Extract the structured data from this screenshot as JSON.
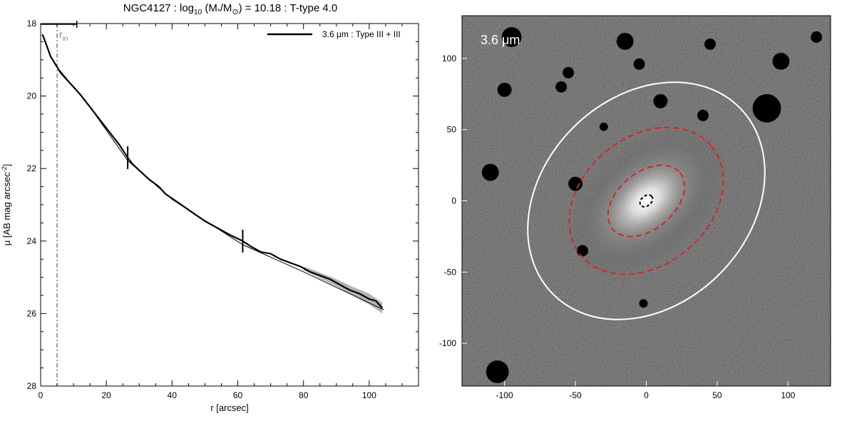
{
  "figure_title": "NGC4127 : log",
  "title_sub": "10",
  "title_mid": " (M",
  "title_star": "*",
  "title_slash": "/M",
  "title_sun": "⊙",
  "title_end": ") = 10.18 : T-type 4.0",
  "colors": {
    "profile": "#000000",
    "error_band": "#b4b4b4",
    "fit_line": "#000000",
    "rin_line": "#808080",
    "ellipse_outer": "#ffffff",
    "ellipse_inner": "#e02020",
    "image_bg": "#1e1e1e"
  },
  "chart_data": [
    {
      "type": "line",
      "title": "NGC4127 : log10 (M*/M⊙) = 10.18 : T-type 4.0",
      "xlabel": "r [arcsec]",
      "ylabel_main": "μ [AB mag arcsec",
      "ylabel_sup": "-2",
      "ylabel_close": "]",
      "xlim": [
        0,
        115
      ],
      "ylim": [
        28,
        18
      ],
      "y_inverted": true,
      "xticks": [
        0,
        20,
        40,
        60,
        80,
        100
      ],
      "yticks": [
        18,
        20,
        22,
        24,
        26,
        28
      ],
      "legend": {
        "label": "3.6 μm : Type III + III",
        "placement": "top-right"
      },
      "rin_label": "r",
      "rin_sub": "in",
      "rin": 5,
      "psf_bar": [
        0,
        11
      ],
      "breaks": [
        26.5,
        61.5
      ],
      "series": [
        {
          "name": "3.6 μm : Type III + III",
          "x": [
            0.5,
            1,
            2,
            3,
            4,
            5,
            6,
            8,
            10,
            12,
            15,
            18,
            21,
            24,
            26.5,
            28,
            30,
            33,
            36,
            38,
            42,
            46,
            50,
            54,
            58,
            61.5,
            64,
            67,
            70,
            73,
            76,
            79,
            82,
            85,
            88,
            91,
            94,
            97,
            100,
            102,
            104
          ],
          "y": [
            18.3,
            18.4,
            18.65,
            18.9,
            19.05,
            19.2,
            19.35,
            19.55,
            19.75,
            19.95,
            20.3,
            20.65,
            21.0,
            21.35,
            21.7,
            21.88,
            22.05,
            22.3,
            22.5,
            22.7,
            22.95,
            23.2,
            23.45,
            23.65,
            23.85,
            24.0,
            24.15,
            24.3,
            24.35,
            24.5,
            24.6,
            24.7,
            24.85,
            24.95,
            25.05,
            25.2,
            25.35,
            25.45,
            25.6,
            25.65,
            25.85
          ]
        }
      ],
      "error_band": {
        "x": [
          80,
          85,
          90,
          95,
          100,
          104
        ],
        "halfwidth": [
          0.05,
          0.08,
          0.1,
          0.12,
          0.15,
          0.15
        ]
      },
      "fit_line": {
        "x": [
          5,
          15,
          26.5,
          40,
          61.5,
          80,
          104.5
        ],
        "y": [
          19.2,
          20.3,
          21.78,
          22.85,
          24.1,
          24.85,
          25.9
        ]
      }
    },
    {
      "type": "image",
      "label": "3.6 μm",
      "xlim": [
        -130,
        130
      ],
      "ylim": [
        -130,
        130
      ],
      "xticks": [
        -100,
        -50,
        0,
        50,
        100
      ],
      "yticks": [
        -100,
        -50,
        0,
        50,
        100
      ],
      "ellipses": [
        {
          "kind": "outer",
          "center": [
            0,
            0
          ],
          "a": 93,
          "b": 73,
          "pa_deg": 45,
          "style": "solid"
        },
        {
          "kind": "break_outer",
          "center": [
            0,
            0
          ],
          "a": 60,
          "b": 45,
          "pa_deg": 40,
          "style": "dashed"
        },
        {
          "kind": "break_inner",
          "center": [
            0,
            0
          ],
          "a": 31,
          "b": 20,
          "pa_deg": 40,
          "style": "dashed"
        },
        {
          "kind": "rin",
          "center": [
            0,
            0
          ],
          "a": 5,
          "b": 3.5,
          "pa_deg": 40,
          "style": "dashed-black"
        }
      ]
    }
  ]
}
